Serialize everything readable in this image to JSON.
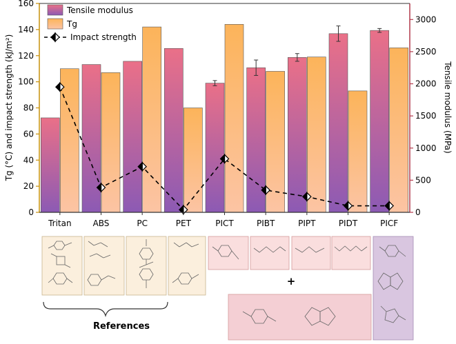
{
  "chart_data": {
    "type": "bar",
    "categories": [
      "Tritan",
      "ABS",
      "PC",
      "PET",
      "PICT",
      "PIBT",
      "PIPT",
      "PIDT",
      "PICF"
    ],
    "series": [
      {
        "name": "Tensile modulus",
        "axis": "right",
        "values": [
          1470,
          2300,
          2350,
          2550,
          2010,
          2250,
          2410,
          2780,
          2830
        ],
        "error": [
          0,
          0,
          0,
          0,
          40,
          120,
          60,
          120,
          30
        ]
      },
      {
        "name": "Tg",
        "axis": "left",
        "values": [
          110,
          107,
          142,
          80,
          144,
          108,
          119,
          93,
          126
        ]
      },
      {
        "name": "Impact strength",
        "axis": "left",
        "type": "line",
        "values": [
          96,
          19,
          35,
          2,
          41,
          17,
          12,
          5,
          5
        ],
        "error": [
          0,
          0,
          0,
          0,
          3,
          0,
          0,
          0,
          0
        ]
      }
    ],
    "ylabel": "Tg (°C) and impact strength (kJ/m²)",
    "y2label": "Tensile modulus (MPa)",
    "ylim": [
      0,
      160
    ],
    "y2lim": [
      0,
      3250
    ],
    "yticks": [
      "0",
      "20",
      "40",
      "60",
      "80",
      "100",
      "120",
      "140",
      "160"
    ],
    "y2ticks": [
      "0",
      "500",
      "1000",
      "1500",
      "2000",
      "2500",
      "3000"
    ],
    "legend": {
      "position": "top-left",
      "items": [
        "Tensile modulus",
        "Tg",
        "Impact strength"
      ]
    },
    "colors": {
      "modulus_top": "#ea7088",
      "modulus_bottom": "#8c5ab4",
      "tg_top": "#fcb45a",
      "tg_bottom": "#fcc4a4",
      "axis_left": "#c7900a",
      "axis_right": "#b23a4c",
      "impact_line": "#000000"
    }
  },
  "structures": {
    "references_label": "References",
    "plus_sign": "+",
    "panel_colors": {
      "references": "#fbefdd",
      "linear_diols": "#fadede",
      "shared_monomers": "#f4cfd4",
      "picf": "#d9c6e0"
    }
  }
}
